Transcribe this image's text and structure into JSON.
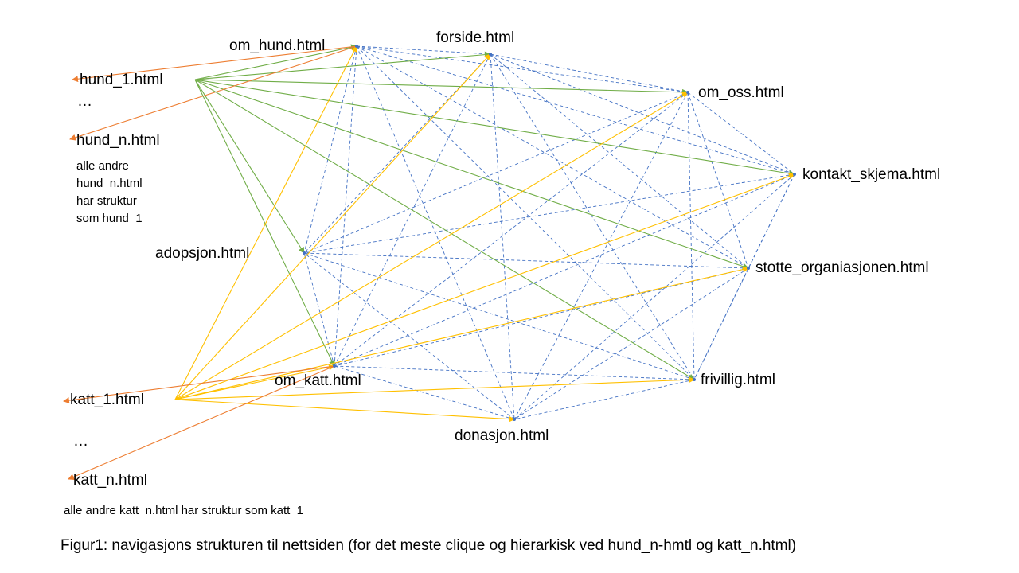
{
  "colors": {
    "clique_edge": "#4472C4",
    "hund_edge": "#70AD47",
    "katt_edge": "#FFC000",
    "leaf_edge": "#ED7D31"
  },
  "nodes": {
    "om_hund": "om_hund.html",
    "forside": "forside.html",
    "om_oss": "om_oss.html",
    "kontakt": "kontakt_skjema.html",
    "stotte": "stotte_organiasjonen.html",
    "frivillig": "frivillig.html",
    "donasjon": "donasjon.html",
    "om_katt": "om_katt.html",
    "adopsjon": "adopsjon.html",
    "hund_1": "hund_1.html",
    "hund_dots": "…",
    "hund_n": "hund_n.html",
    "katt_1": "katt_1.html",
    "katt_dots": "…",
    "katt_n": "katt_n.html"
  },
  "notes": {
    "hund_lines": [
      "alle andre",
      "hund_n.html",
      "har struktur",
      "som hund_1"
    ],
    "katt": "alle andre katt_n.html har struktur som katt_1"
  },
  "caption": "Figur1: navigasjons strukturen til nettsiden (for det meste clique og hierarkisk ved hund_n-hmtl og katt_n.html)",
  "edges": {
    "clique": [
      "om_hund",
      "forside",
      "om_oss",
      "kontakt",
      "stotte",
      "frivillig",
      "donasjon",
      "om_katt",
      "adopsjon"
    ],
    "hund_1_to": [
      "om_hund",
      "forside",
      "om_oss",
      "kontakt",
      "stotte",
      "frivillig",
      "om_katt",
      "adopsjon"
    ],
    "katt_1_to": [
      "om_hund",
      "forside",
      "om_oss",
      "kontakt",
      "stotte",
      "frivillig",
      "donasjon",
      "om_katt"
    ],
    "om_hund_to": [
      "hund_1",
      "hund_n"
    ],
    "om_katt_to": [
      "katt_1",
      "katt_n"
    ]
  }
}
